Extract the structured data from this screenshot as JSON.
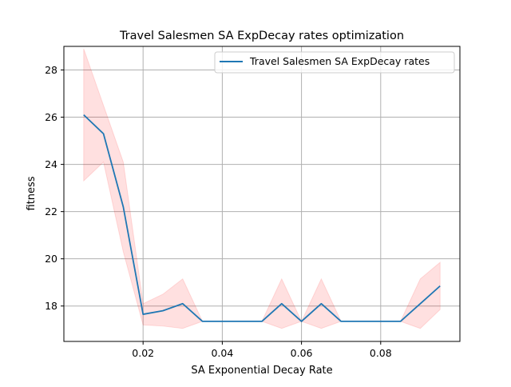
{
  "chart_data": {
    "type": "line",
    "title": "Travel Salesmen SA ExpDecay rates optimization",
    "xlabel": "SA Exponential Decay Rate",
    "ylabel": "fitness",
    "xlim": [
      0.0,
      0.1
    ],
    "ylim": [
      16.5,
      29.0
    ],
    "grid": true,
    "legend_position": "upper right",
    "x_ticks": [
      0.02,
      0.04,
      0.06,
      0.08
    ],
    "x_tick_labels": [
      "0.02",
      "0.04",
      "0.06",
      "0.08"
    ],
    "y_ticks": [
      18,
      20,
      22,
      24,
      26,
      28
    ],
    "y_tick_labels": [
      "18",
      "20",
      "22",
      "24",
      "26",
      "28"
    ],
    "series": [
      {
        "name": "Travel Salesmen SA ExpDecay rates",
        "color": "#1f77b4",
        "x": [
          0.005,
          0.01,
          0.015,
          0.02,
          0.025,
          0.03,
          0.035,
          0.04,
          0.045,
          0.05,
          0.055,
          0.06,
          0.065,
          0.07,
          0.075,
          0.08,
          0.085,
          0.09,
          0.095
        ],
        "y": [
          26.1,
          25.3,
          22.2,
          17.65,
          17.8,
          18.1,
          17.35,
          17.35,
          17.35,
          17.35,
          18.1,
          17.35,
          18.1,
          17.35,
          17.35,
          17.35,
          17.35,
          18.1,
          18.85
        ],
        "band_lower": [
          23.3,
          24.1,
          20.3,
          17.2,
          17.15,
          17.05,
          17.35,
          17.35,
          17.35,
          17.35,
          17.05,
          17.35,
          17.05,
          17.35,
          17.35,
          17.35,
          17.35,
          17.05,
          17.85
        ],
        "band_upper": [
          28.9,
          26.5,
          24.1,
          18.1,
          18.5,
          19.15,
          17.35,
          17.35,
          17.35,
          17.35,
          19.15,
          17.35,
          19.15,
          17.35,
          17.35,
          17.35,
          17.35,
          19.15,
          19.85
        ],
        "band_color": "#ff0000"
      }
    ]
  }
}
